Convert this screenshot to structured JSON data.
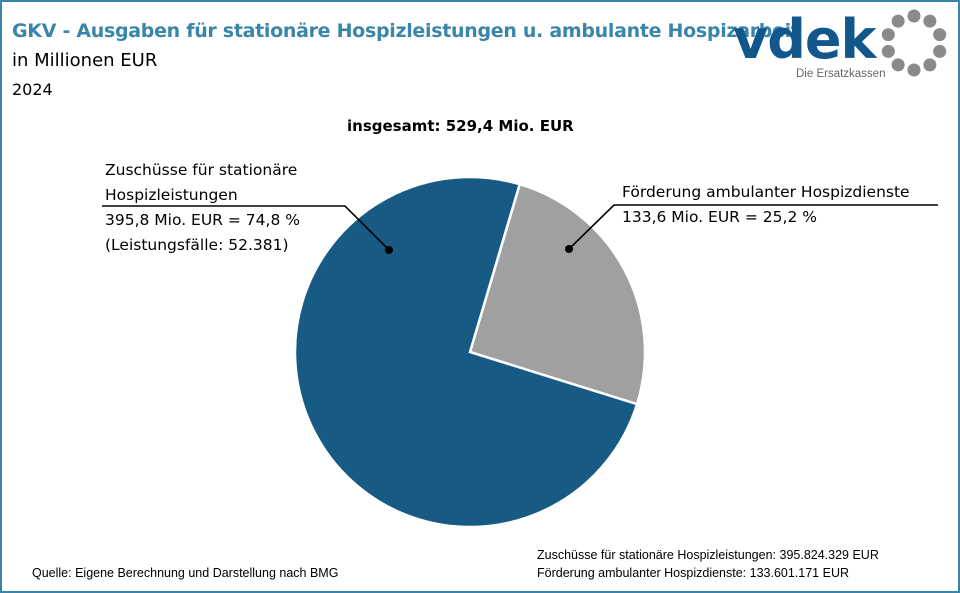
{
  "header": {
    "title": "GKV - Ausgaben für stationäre Hospizleistungen u. ambulante Hospizarbeit",
    "subtitle": "in Millionen EUR",
    "year": "2024"
  },
  "logo": {
    "name": "vdek",
    "tagline": "Die Ersatzkassen",
    "icon": "circle-of-dots-icon"
  },
  "chart_data": {
    "type": "pie",
    "title": "insgesamt:  529,4 Mio. EUR",
    "total": 529.4,
    "unit": "Mio. EUR",
    "slices": [
      {
        "name": "Förderung ambulanter Hospizdienste",
        "value": 133.6,
        "percent": 25.2,
        "color": "#a0a0a0",
        "label_line1": "Förderung ambulanter Hospizdienste",
        "label_line2": "133,6  Mio. EUR =  25,2 %"
      },
      {
        "name": "Zuschüsse für stationäre Hospizleistungen",
        "value": 395.8,
        "percent": 74.8,
        "color": "#175a83",
        "label_line1": "Zuschüsse für stationäre",
        "label_line2": "Hospizleistungen",
        "label_line3": "395,8  Mio. EUR =  74,8 %",
        "label_line4": "(Leistungsfälle:  52.381)"
      }
    ]
  },
  "footer": {
    "source": "Quelle: Eigene Berechnung und Darstellung nach BMG",
    "note1": "Zuschüsse für stationäre Hospizleistungen: 395.824.329 EUR",
    "note2": "Förderung ambulanter Hospizdienste: 133.601.171 EUR"
  },
  "colors": {
    "accent": "#3a86aa",
    "brand": "#12578b"
  }
}
